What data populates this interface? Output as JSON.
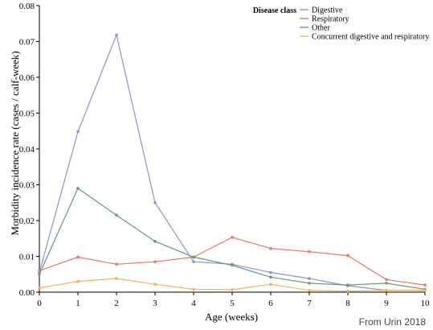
{
  "chart_data": {
    "type": "line",
    "xlabel": "Age (weeks)",
    "ylabel": "Morbidity incidence rate (cases / calf-week)",
    "x": [
      0,
      1,
      2,
      3,
      4,
      5,
      6,
      7,
      8,
      9,
      10
    ],
    "xlim": [
      0,
      10
    ],
    "ylim": [
      0,
      0.08
    ],
    "xticks": [
      "0",
      "1",
      "2",
      "3",
      "4",
      "5",
      "6",
      "7",
      "8",
      "9",
      "10"
    ],
    "yticks": [
      {
        "value": 0,
        "label": "0.00"
      },
      {
        "value": 0.01,
        "label": "0.01"
      },
      {
        "value": 0.02,
        "label": "0.02"
      },
      {
        "value": 0.03,
        "label": "0.03"
      },
      {
        "value": 0.04,
        "label": "0.04"
      },
      {
        "value": 0.05,
        "label": "0.05"
      },
      {
        "value": 0.06,
        "label": "0.06"
      },
      {
        "value": 0.07,
        "label": "0.07"
      },
      {
        "value": 0.08,
        "label": "0.08"
      }
    ],
    "grid": false,
    "legend": {
      "title": "Disease class",
      "placement": "top-right"
    },
    "series": [
      {
        "name": "Digestive",
        "color": "#8f8fd6",
        "values": [
          0.0055,
          0.0448,
          0.0718,
          0.025,
          0.0085,
          0.0078,
          0.0055,
          0.0038,
          0.0018,
          0.0005,
          0.0005
        ]
      },
      {
        "name": "Respiratory",
        "color": "#e8766a",
        "values": [
          0.006,
          0.0098,
          0.0078,
          0.0085,
          0.0098,
          0.0153,
          0.0122,
          0.0113,
          0.0102,
          0.0035,
          0.002
        ]
      },
      {
        "name": "Other",
        "color": "#6a9a72",
        "values": [
          0.005,
          0.029,
          0.0215,
          0.0142,
          0.0098,
          0.0075,
          0.0042,
          0.0025,
          0.002,
          0.0025,
          0.0008
        ]
      },
      {
        "name": "Concurrent digestive and respiratory",
        "color": "#f2b25a",
        "values": [
          0.0012,
          0.003,
          0.0038,
          0.0022,
          0.0008,
          0.0007,
          0.0022,
          0.0005,
          0.0003,
          0.0005,
          0.0005
        ]
      }
    ]
  },
  "source_note": "From Urin 2018"
}
